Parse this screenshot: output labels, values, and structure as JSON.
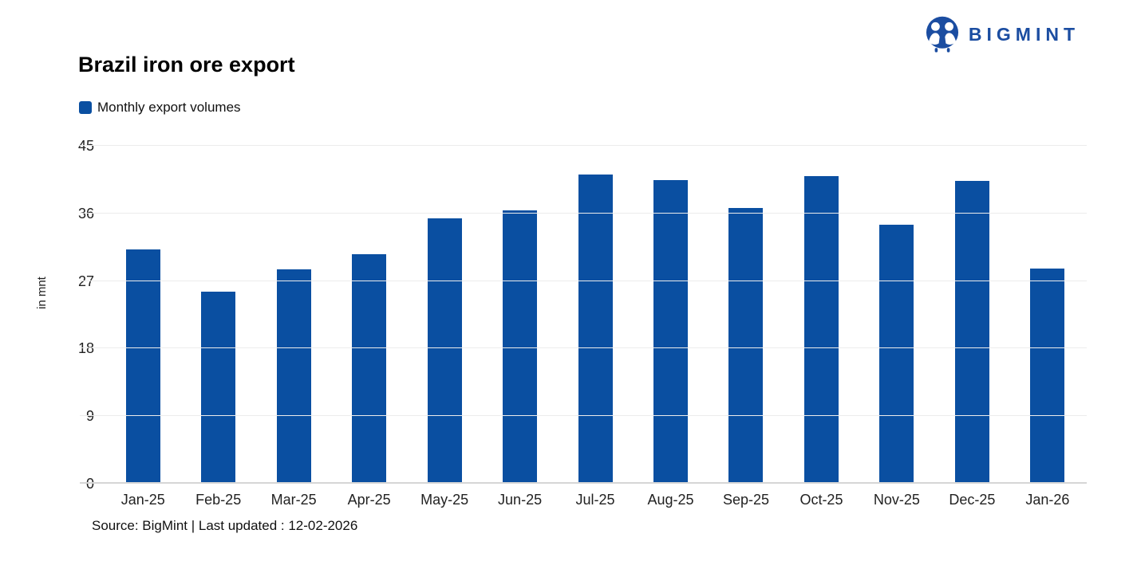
{
  "header": {
    "title": "Brazil iron ore export",
    "logo": {
      "text": "BIGMINT",
      "color": "#1b4da1",
      "icon": "bigmint-people-icon"
    }
  },
  "legend": {
    "label": "Monthly export volumes",
    "marker_color": "#0a4fa1"
  },
  "chart_data": {
    "type": "bar",
    "title": "Brazil iron ore export",
    "series_name": "Monthly export volumes",
    "categories": [
      "Jan-25",
      "Feb-25",
      "Mar-25",
      "Apr-25",
      "May-25",
      "Jun-25",
      "Jul-25",
      "Aug-25",
      "Sep-25",
      "Oct-25",
      "Nov-25",
      "Dec-25",
      "Jan-26"
    ],
    "values": [
      31.2,
      25.6,
      28.6,
      30.6,
      35.3,
      36.4,
      41.2,
      40.4,
      36.7,
      41.0,
      34.5,
      40.3,
      28.7
    ],
    "xlabel": "",
    "ylabel": "in mnt",
    "ylim": [
      0,
      45
    ],
    "yticks": [
      0,
      9,
      18,
      27,
      36,
      45
    ],
    "bar_color": "#0a4fa1",
    "grid": true,
    "gridline_color": "#ececec",
    "zero_line_color": "#d6d6d6",
    "legend_position": "top-left"
  },
  "footer": {
    "source": "Source: BigMint | Last updated : 12-02-2026"
  }
}
